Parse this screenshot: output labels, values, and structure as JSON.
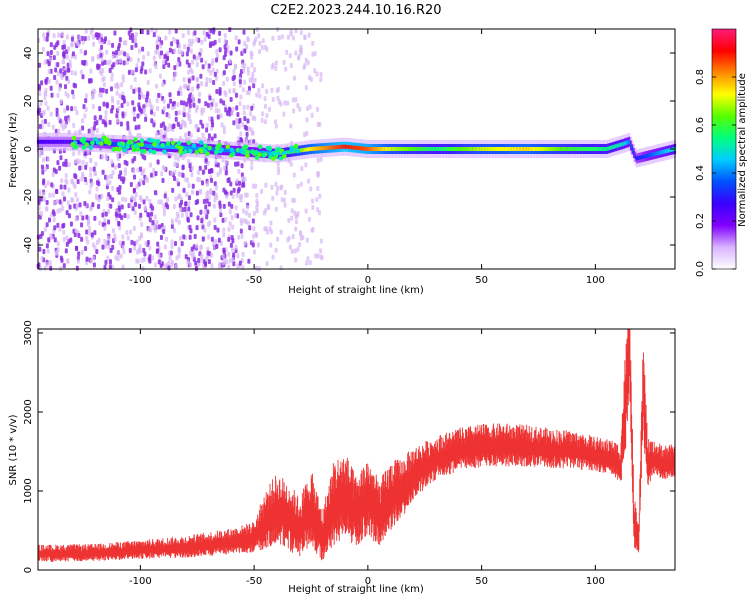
{
  "figure": {
    "title": "C2E2.2023.244.10.16.R20"
  },
  "chart_data": [
    {
      "type": "heatmap",
      "xlabel": "Height of straight line (km)",
      "ylabel": "Frequency (Hz)",
      "xlim": [
        -145,
        135
      ],
      "ylim": [
        -50,
        50
      ],
      "xticks": [
        -100,
        -50,
        0,
        50,
        100
      ],
      "yticks": [
        -40,
        -20,
        0,
        20,
        40
      ],
      "grid": false,
      "colorbar": {
        "label": "Normalized spectral amplitude",
        "range": [
          0,
          1
        ],
        "ticks": [
          0.0,
          0.2,
          0.4,
          0.6,
          0.8
        ],
        "colormap": [
          "#ffffff",
          "#d9b3ff",
          "#8000ff",
          "#3a00ff",
          "#0050ff",
          "#00ccff",
          "#00ff80",
          "#55ff00",
          "#ffff00",
          "#ff8800",
          "#ff0000",
          "#ff1a7a"
        ]
      },
      "scatter_band": {
        "dense_x_range": [
          -145,
          -50
        ],
        "sparse_x_range": [
          -50,
          -20
        ],
        "main_color": "#8a2be2",
        "faint_color": "#d7b8f5"
      },
      "centerline": {
        "x": [
          -130,
          -110,
          -90,
          -70,
          -55,
          -40,
          -25,
          -10,
          0,
          10,
          30,
          50,
          70,
          90,
          105,
          112,
          115,
          118,
          135
        ],
        "freq": [
          3,
          2,
          1,
          0,
          -1,
          -2,
          0,
          1,
          0,
          0,
          0,
          0,
          0,
          0,
          0,
          2,
          3,
          -4,
          0
        ],
        "amplitude": [
          0.25,
          0.35,
          0.45,
          0.4,
          0.4,
          0.45,
          0.75,
          0.9,
          0.85,
          0.7,
          0.55,
          0.7,
          0.75,
          0.6,
          0.55,
          0.5,
          0.4,
          0.3,
          0.5
        ]
      }
    },
    {
      "type": "line",
      "xlabel": "Height of straight line (km)",
      "ylabel": "SNR (10 * v/v)",
      "xlim": [
        -145,
        135
      ],
      "ylim": [
        0,
        3050
      ],
      "xticks": [
        -100,
        -50,
        0,
        50,
        100
      ],
      "yticks": [
        0,
        1000,
        2000,
        3000
      ],
      "grid": false,
      "color": "#ee3333",
      "series": [
        {
          "x": [
            -145,
            -120,
            -100,
            -80,
            -60,
            -50,
            -45,
            -40,
            -35,
            -30,
            -25,
            -20,
            -15,
            -10,
            -5,
            0,
            5,
            10,
            15,
            20,
            30,
            40,
            50,
            60,
            70,
            80,
            90,
            100,
            108,
            111,
            113,
            115,
            117,
            119,
            121,
            123,
            125,
            130,
            135
          ],
          "values": [
            200,
            210,
            250,
            280,
            350,
            400,
            600,
            750,
            650,
            500,
            750,
            400,
            800,
            900,
            700,
            900,
            650,
            900,
            1000,
            1200,
            1400,
            1500,
            1550,
            1560,
            1550,
            1520,
            1500,
            1450,
            1400,
            1300,
            2000,
            2700,
            600,
            300,
            2300,
            1300,
            1400,
            1350,
            1350
          ],
          "spread": [
            100,
            100,
            110,
            130,
            150,
            180,
            350,
            400,
            400,
            350,
            450,
            300,
            500,
            500,
            400,
            450,
            400,
            400,
            350,
            300,
            250,
            250,
            250,
            250,
            240,
            230,
            220,
            200,
            200,
            250,
            600,
            600,
            300,
            200,
            600,
            300,
            200,
            200,
            200
          ]
        }
      ]
    }
  ]
}
